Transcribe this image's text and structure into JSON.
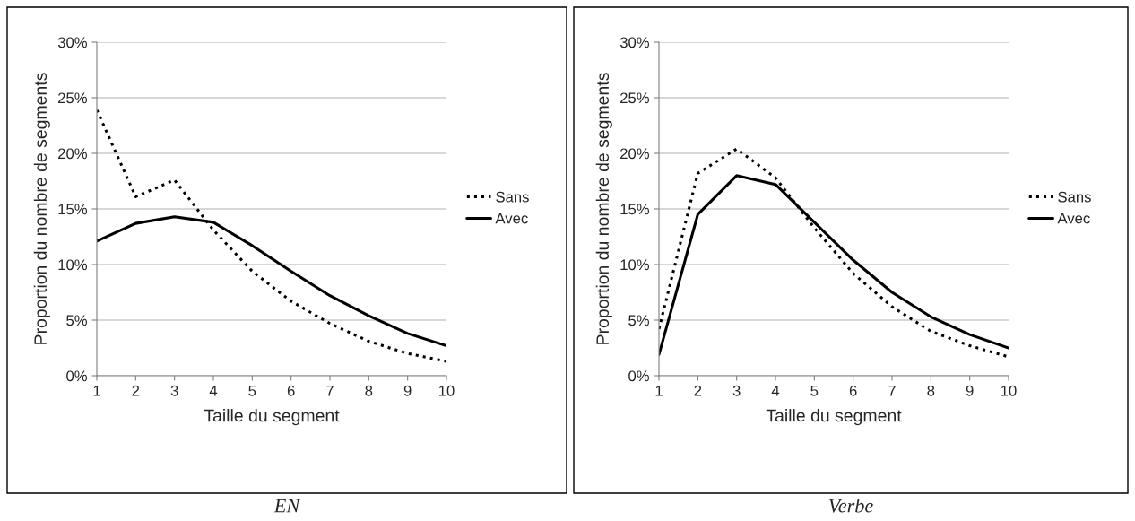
{
  "chart_data": [
    {
      "type": "line",
      "title": "EN",
      "xlabel": "Taille du segment",
      "ylabel": "Proportion du nombre de segments",
      "x": [
        1,
        2,
        3,
        4,
        5,
        6,
        7,
        8,
        9,
        10
      ],
      "series": [
        {
          "name": "Sans",
          "color": "#000000",
          "line_style": "dotted",
          "values": [
            23.9,
            16.1,
            17.6,
            13.1,
            9.4,
            6.7,
            4.7,
            3.1,
            2.0,
            1.3
          ]
        },
        {
          "name": "Avec",
          "color": "#000000",
          "line_style": "solid",
          "values": [
            12.1,
            13.7,
            14.3,
            13.8,
            11.7,
            9.4,
            7.2,
            5.4,
            3.8,
            2.7
          ]
        }
      ],
      "xlim": [
        1,
        10
      ],
      "xticks": [
        1,
        2,
        3,
        4,
        5,
        6,
        7,
        8,
        9,
        10
      ],
      "ylim": [
        0,
        30
      ],
      "yticks": [
        {
          "value": 0,
          "label": "0%"
        },
        {
          "value": 5,
          "label": "5%"
        },
        {
          "value": 10,
          "label": "10%"
        },
        {
          "value": 15,
          "label": "15%"
        },
        {
          "value": 20,
          "label": "20%"
        },
        {
          "value": 25,
          "label": "25%"
        },
        {
          "value": 30,
          "label": "30%"
        }
      ],
      "grid": "y",
      "legend": "right",
      "marker": "none"
    },
    {
      "type": "line",
      "title": "Verbe",
      "xlabel": "Taille du segment",
      "ylabel": "Proportion du nombre de segments",
      "x": [
        1,
        2,
        3,
        4,
        5,
        6,
        7,
        8,
        9,
        10
      ],
      "series": [
        {
          "name": "Sans",
          "color": "#000000",
          "line_style": "dotted",
          "values": [
            4.2,
            18.2,
            20.4,
            17.8,
            13.3,
            9.2,
            6.2,
            4.0,
            2.7,
            1.7
          ]
        },
        {
          "name": "Avec",
          "color": "#000000",
          "line_style": "solid",
          "values": [
            1.9,
            14.5,
            18.0,
            17.2,
            13.8,
            10.4,
            7.5,
            5.3,
            3.7,
            2.5
          ]
        }
      ],
      "xlim": [
        1,
        10
      ],
      "xticks": [
        1,
        2,
        3,
        4,
        5,
        6,
        7,
        8,
        9,
        10
      ],
      "ylim": [
        0,
        30
      ],
      "yticks": [
        {
          "value": 0,
          "label": "0%"
        },
        {
          "value": 5,
          "label": "5%"
        },
        {
          "value": 10,
          "label": "10%"
        },
        {
          "value": 15,
          "label": "15%"
        },
        {
          "value": 20,
          "label": "20%"
        },
        {
          "value": 25,
          "label": "25%"
        },
        {
          "value": 30,
          "label": "30%"
        }
      ],
      "grid": "y",
      "legend": "right",
      "marker": "none"
    }
  ]
}
